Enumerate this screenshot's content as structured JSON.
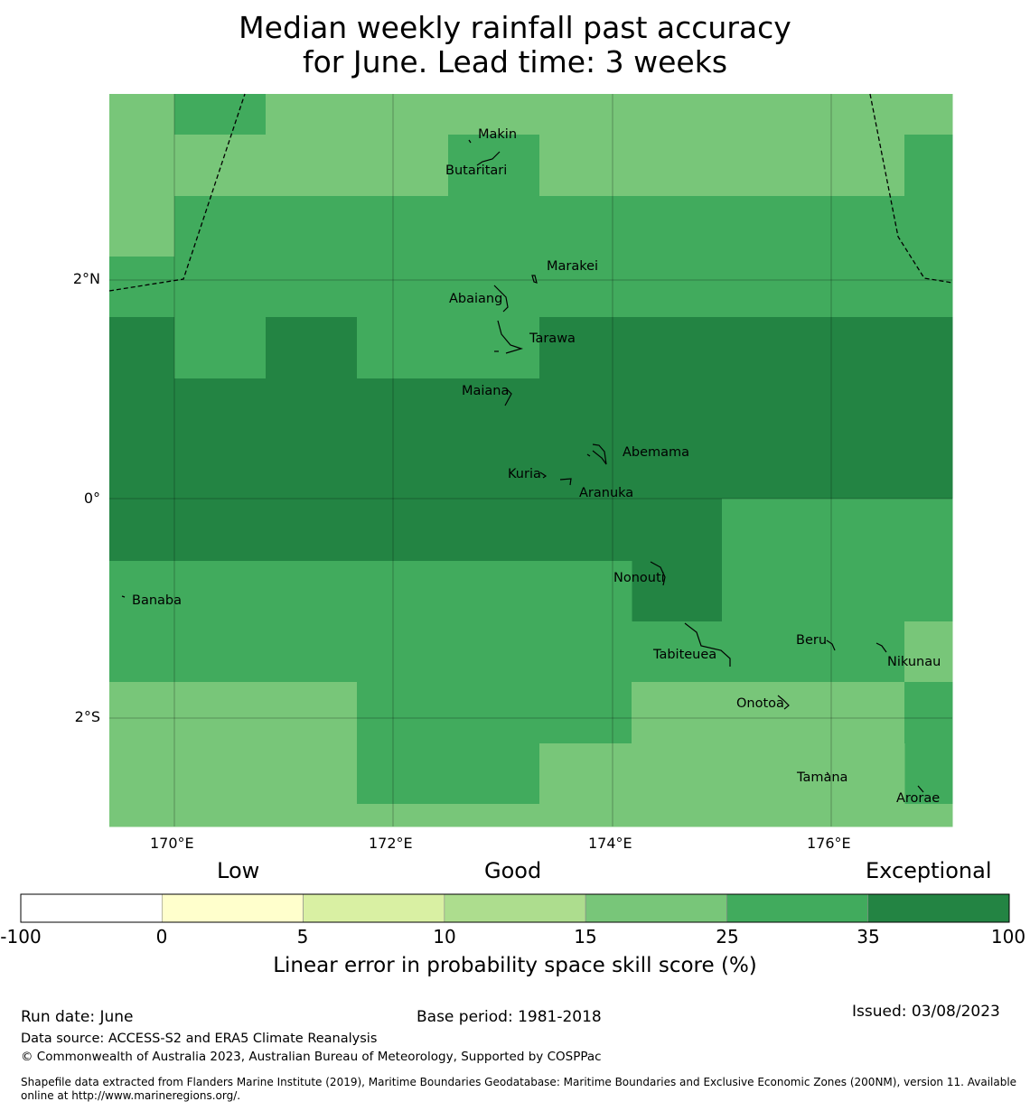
{
  "title": {
    "line1": "Median weekly rainfall past accuracy",
    "line2": "for June. Lead time: 3 weeks"
  },
  "map": {
    "lat_labels": [
      "2°N",
      "0°",
      "2°S"
    ],
    "lon_labels": [
      "170°E",
      "172°E",
      "174°E",
      "176°E"
    ],
    "places": [
      {
        "name": "Makin"
      },
      {
        "name": "Butaritari"
      },
      {
        "name": "Marakei"
      },
      {
        "name": "Abaiang"
      },
      {
        "name": "Tarawa"
      },
      {
        "name": "Maiana"
      },
      {
        "name": "Abemama"
      },
      {
        "name": "Kuria"
      },
      {
        "name": "Aranuka"
      },
      {
        "name": "Nonouti"
      },
      {
        "name": "Banaba"
      },
      {
        "name": "Tabiteuea"
      },
      {
        "name": "Beru"
      },
      {
        "name": "Nikunau"
      },
      {
        "name": "Onotoa"
      },
      {
        "name": "Tamana"
      },
      {
        "name": "Arorae"
      }
    ]
  },
  "legend": {
    "categories": [
      "Low",
      "Good",
      "Exceptional"
    ],
    "ticks": [
      "-100",
      "0",
      "5",
      "10",
      "15",
      "25",
      "35",
      "100"
    ],
    "colors": [
      "#ffffff",
      "#ffffcc",
      "#d9f0a3",
      "#addd8e",
      "#78c679",
      "#41ab5d",
      "#238443"
    ],
    "label": "Linear error in probability space skill score (%)"
  },
  "footer": {
    "run_date": "Run date: June",
    "base_period": "Base period: 1981-2018",
    "issued": "Issued: 03/08/2023",
    "data_source": "Data source: ACCESS-S2 and ERA5 Climate Reanalysis",
    "copyright": "© Commonwealth of Australia 2023, Australian Bureau of Meteorology, Supported by COSPPac",
    "shapefile": "Shapefile data extracted from Flanders Marine Institute (2019), Maritime Boundaries Geodatabase: Maritime Boundaries and Exclusive Economic Zones (200NM), version 11. Available online at http://www.marineregions.org/."
  }
}
